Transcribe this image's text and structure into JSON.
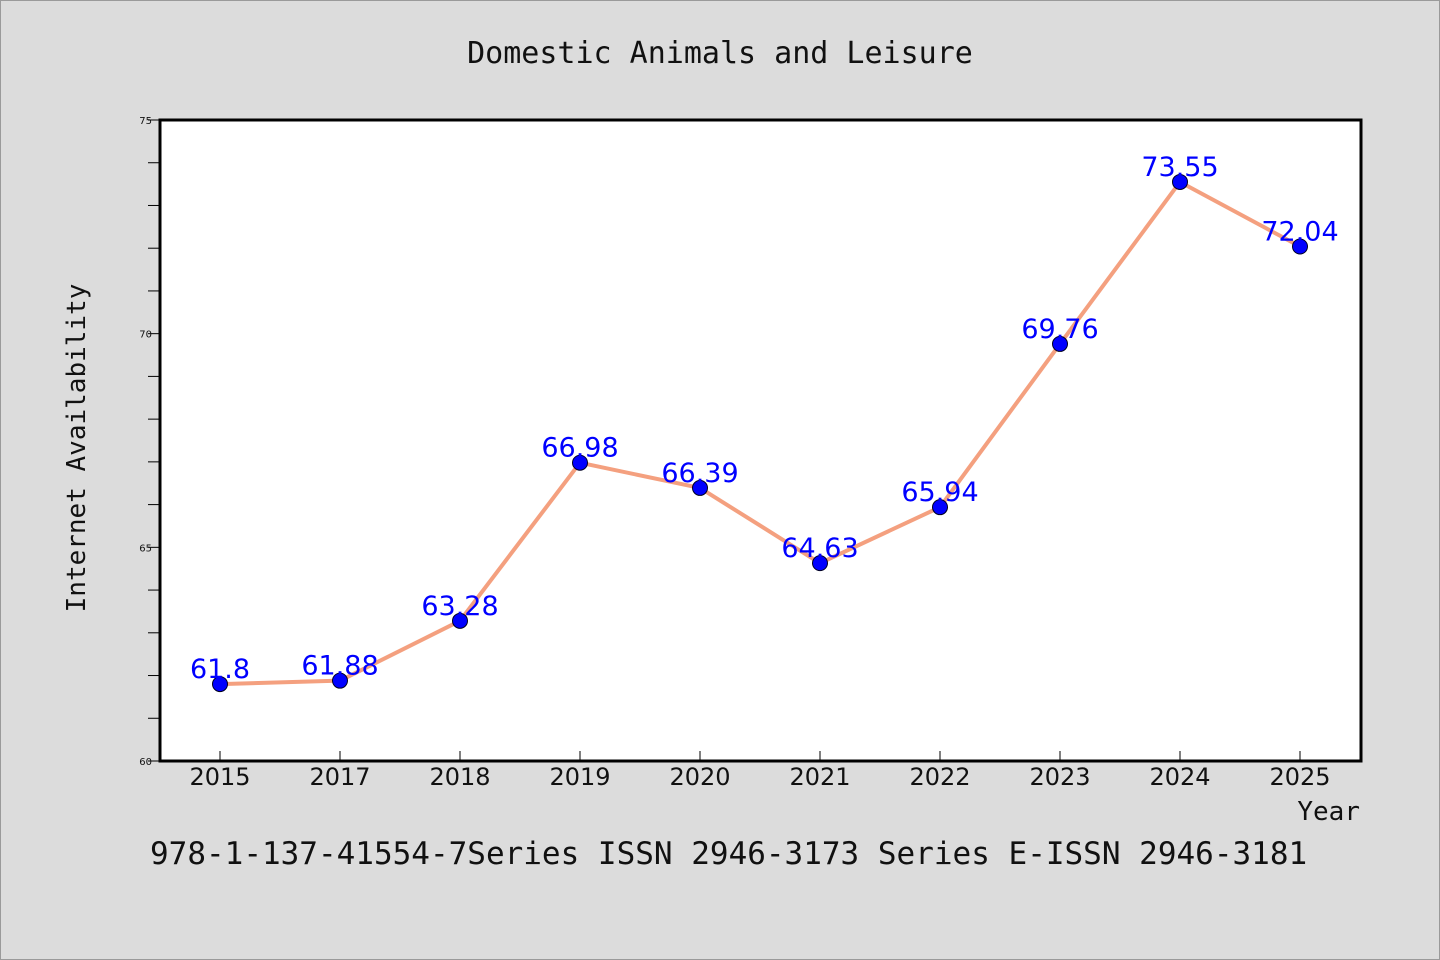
{
  "chart_data": {
    "type": "line",
    "title": "Domestic Animals and Leisure",
    "xlabel": "Year",
    "ylabel": "Internet Availability",
    "categories": [
      "2015",
      "2017",
      "2018",
      "2019",
      "2020",
      "2021",
      "2022",
      "2023",
      "2024",
      "2025"
    ],
    "series": [
      {
        "values": [
          61.8,
          61.88,
          63.28,
          66.98,
          66.39,
          64.63,
          65.94,
          69.76,
          73.55,
          72.04
        ],
        "labels": [
          "61.8",
          "61.88",
          "63.28",
          "66.98",
          "66.39",
          "64.63",
          "65.94",
          "69.76",
          "73.55",
          "72.04"
        ],
        "line_color": "#f4a07f",
        "marker_color": "#0000ff"
      }
    ],
    "ylim": [
      60,
      75
    ],
    "yticks": [
      60,
      65,
      70,
      75
    ],
    "grid": false,
    "legend": "none"
  },
  "footer": "978-1-137-41554-7Series ISSN 2946-3173 Series E-ISSN 2946-3181"
}
